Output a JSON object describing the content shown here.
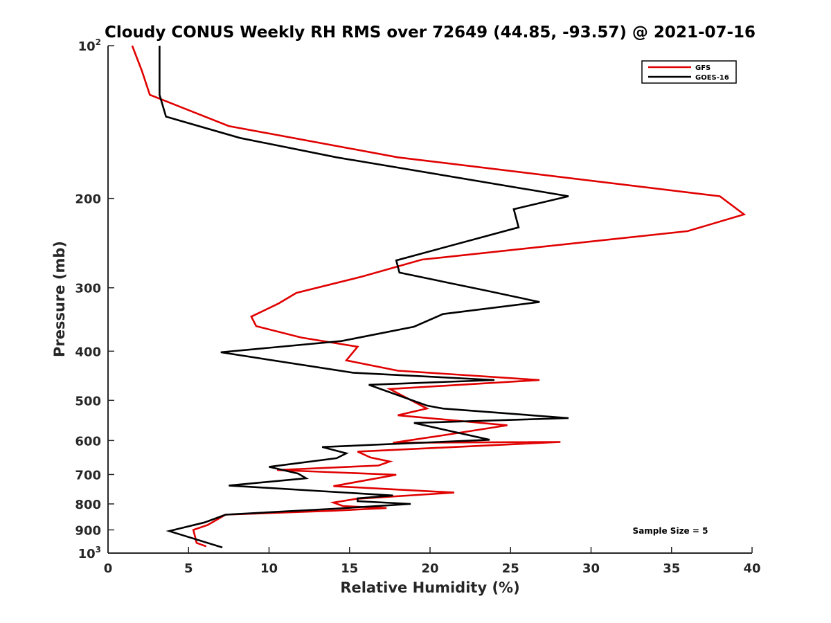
{
  "chart_data": {
    "type": "line",
    "title": "Cloudy CONUS Weekly RH RMS over 72649 (44.85, -93.57) @ 2021-07-16",
    "xlabel": "Relative Humidity (%)",
    "ylabel": "Pressure (mb)",
    "xlim": [
      0,
      40
    ],
    "ylim": [
      100,
      1000
    ],
    "y_scale": "log",
    "y_reversed": true,
    "grid": false,
    "legend_position": "top-right",
    "x_ticks": [
      "0",
      "5",
      "10",
      "15",
      "20",
      "25",
      "30",
      "35",
      "40"
    ],
    "y_ticks": [
      {
        "value": 100,
        "label": "10",
        "sup": "2"
      },
      {
        "value": 200,
        "label": "200",
        "sup": ""
      },
      {
        "value": 300,
        "label": "300",
        "sup": ""
      },
      {
        "value": 400,
        "label": "400",
        "sup": ""
      },
      {
        "value": 500,
        "label": "500",
        "sup": ""
      },
      {
        "value": 600,
        "label": "600",
        "sup": ""
      },
      {
        "value": 700,
        "label": "700",
        "sup": ""
      },
      {
        "value": 800,
        "label": "800",
        "sup": ""
      },
      {
        "value": 900,
        "label": "900",
        "sup": ""
      },
      {
        "value": 1000,
        "label": "10",
        "sup": "3"
      }
    ],
    "annotation": "Sample Size = 5",
    "series": [
      {
        "name": "GFS",
        "color": "#e00000",
        "x": [
          1.5,
          2.1,
          2.6,
          7.5,
          18.0,
          38.0,
          39.5,
          36.0,
          19.5,
          15.8,
          11.7,
          10.6,
          8.9,
          9.2,
          12.0,
          15.5,
          14.8,
          18.0,
          26.8,
          17.5,
          19.8,
          18.0,
          24.8,
          20.8,
          17.7,
          28.1,
          15.5,
          16.3,
          17.5,
          16.8,
          10.5,
          17.9,
          14.0,
          21.5,
          15.4,
          14.0,
          14.6,
          17.3,
          14.0,
          7.3,
          6.2,
          5.3,
          5.5,
          6.1
        ],
        "y": [
          100,
          112,
          125,
          144,
          166,
          198,
          215,
          232,
          264,
          285,
          307,
          322,
          342,
          357,
          376,
          392,
          417,
          437,
          456,
          475,
          519,
          535,
          560,
          586,
          606,
          604,
          631,
          648,
          660,
          672,
          686,
          701,
          738,
          760,
          782,
          795,
          808,
          815,
          825,
          840,
          880,
          900,
          955,
          970
        ]
      },
      {
        "name": "GOES-16",
        "color": "#000000",
        "x": [
          3.2,
          3.2,
          3.2,
          3.6,
          8.2,
          14.2,
          28.6,
          25.2,
          25.5,
          17.9,
          18.1,
          23.5,
          26.8,
          20.8,
          19.0,
          14.5,
          7.0,
          15.2,
          24.0,
          16.2,
          19.8,
          20.8,
          28.6,
          19.0,
          23.7,
          13.3,
          14.8,
          14.2,
          10.0,
          11.8,
          12.3,
          7.5,
          17.7,
          15.5,
          15.5,
          18.8,
          14.0,
          7.3,
          6.0,
          3.8,
          7.1
        ],
        "y": [
          100,
          112,
          125,
          138,
          152,
          166,
          198,
          210,
          228,
          265,
          280,
          304,
          320,
          338,
          358,
          382,
          402,
          441,
          456,
          466,
          512,
          519,
          542,
          554,
          598,
          618,
          636,
          650,
          676,
          697,
          712,
          736,
          770,
          780,
          790,
          800,
          818,
          840,
          870,
          905,
          975
        ]
      }
    ]
  }
}
